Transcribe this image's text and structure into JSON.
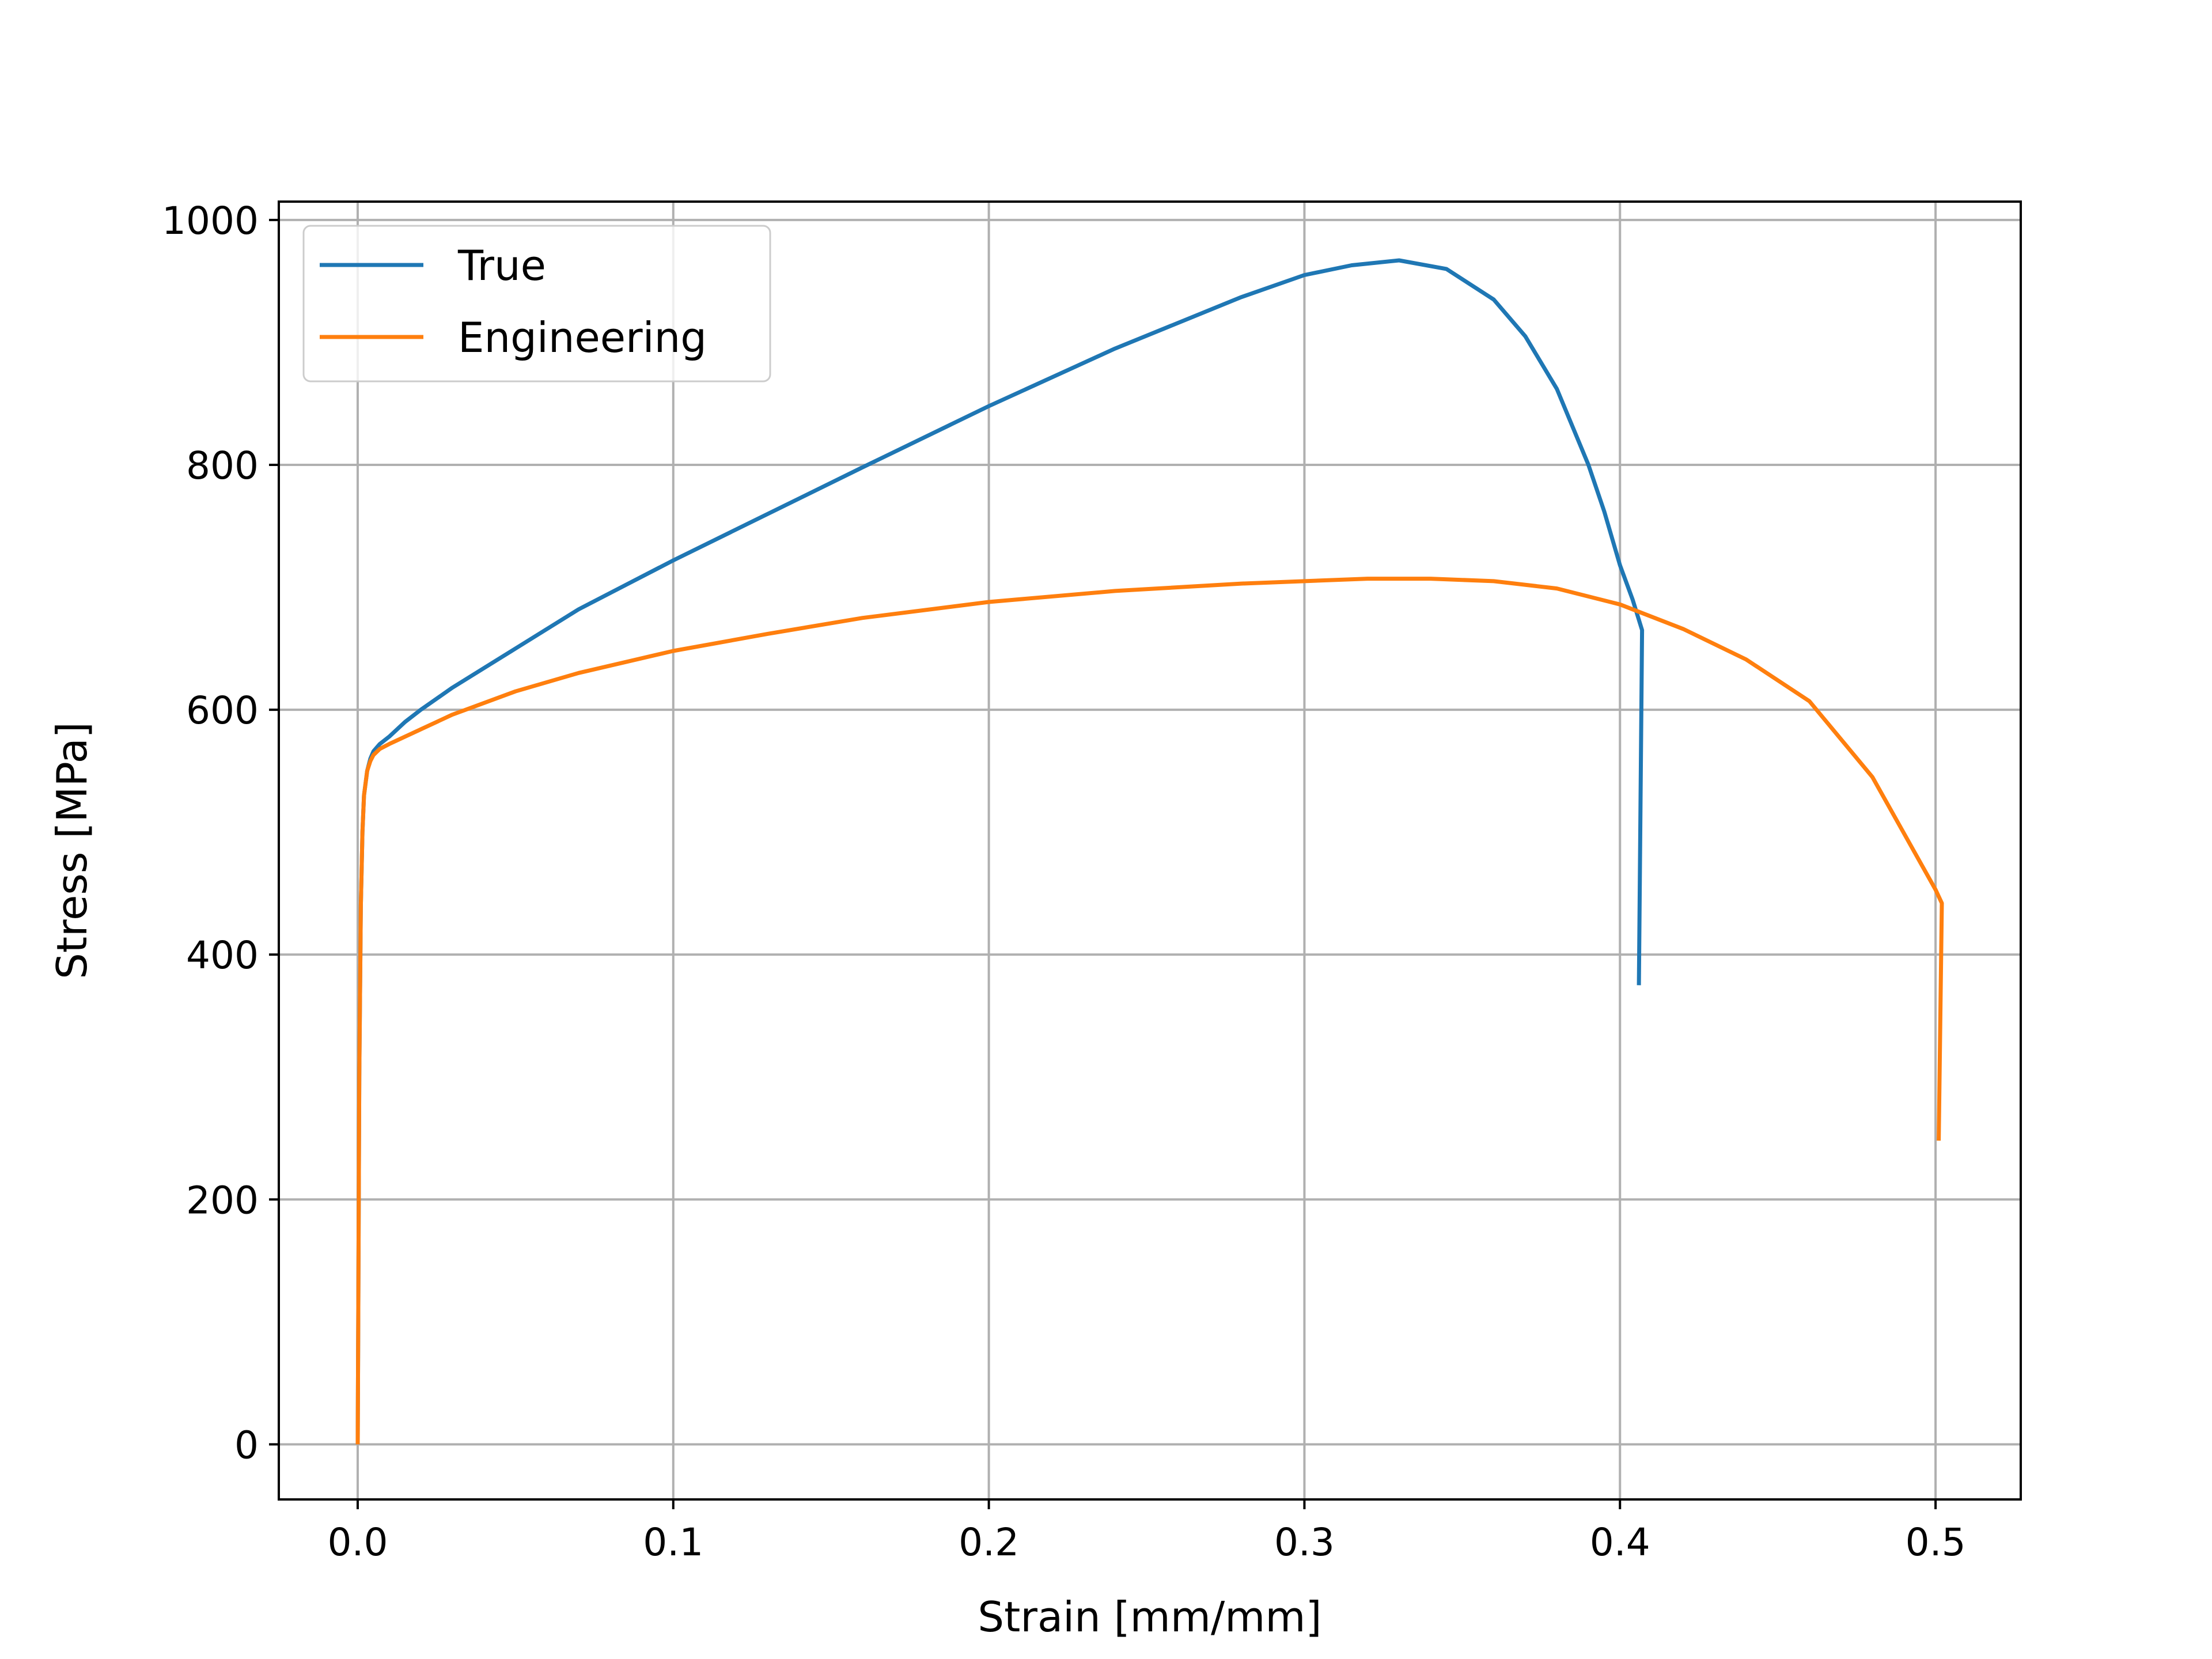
{
  "chart_data": {
    "type": "line",
    "title": "",
    "xlabel": "Strain [mm/mm]",
    "ylabel": "Stress [MPa]",
    "xlim": [
      -0.025,
      0.527
    ],
    "ylim": [
      -45,
      1015
    ],
    "xticks": [
      0.0,
      0.1,
      0.2,
      0.3,
      0.4,
      0.5
    ],
    "xtick_labels": [
      "0.0",
      "0.1",
      "0.2",
      "0.3",
      "0.4",
      "0.5"
    ],
    "yticks": [
      0,
      200,
      400,
      600,
      800,
      1000
    ],
    "ytick_labels": [
      "0",
      "200",
      "400",
      "600",
      "800",
      "1000"
    ],
    "grid": true,
    "legend_position": "upper-left",
    "series": [
      {
        "name": "True",
        "color": "#1f77b4",
        "x": [
          0.0,
          0.0005,
          0.001,
          0.0015,
          0.002,
          0.003,
          0.004,
          0.005,
          0.007,
          0.01,
          0.015,
          0.02,
          0.03,
          0.05,
          0.07,
          0.1,
          0.13,
          0.16,
          0.2,
          0.24,
          0.28,
          0.3,
          0.315,
          0.33,
          0.345,
          0.36,
          0.37,
          0.38,
          0.39,
          0.395,
          0.4,
          0.404,
          0.407,
          0.406
        ],
        "y": [
          0,
          300,
          440,
          500,
          530,
          550,
          560,
          566,
          572,
          578,
          590,
          600,
          618,
          650,
          682,
          722,
          760,
          798,
          848,
          895,
          937,
          955,
          963,
          967,
          960,
          935,
          905,
          862,
          800,
          762,
          718,
          690,
          665,
          375
        ]
      },
      {
        "name": "Engineering",
        "color": "#ff7f0e",
        "x": [
          0.0,
          0.0005,
          0.001,
          0.0015,
          0.002,
          0.003,
          0.004,
          0.005,
          0.007,
          0.01,
          0.015,
          0.02,
          0.03,
          0.05,
          0.07,
          0.1,
          0.13,
          0.16,
          0.2,
          0.24,
          0.28,
          0.3,
          0.32,
          0.34,
          0.36,
          0.38,
          0.4,
          0.42,
          0.44,
          0.46,
          0.48,
          0.5,
          0.502,
          0.501
        ],
        "y": [
          0,
          300,
          440,
          500,
          530,
          550,
          558,
          563,
          568,
          572,
          578,
          584,
          596,
          615,
          630,
          648,
          662,
          675,
          688,
          697,
          703,
          705,
          707,
          707,
          705,
          699,
          686,
          666,
          641,
          607,
          545,
          453,
          442,
          248
        ]
      }
    ]
  }
}
